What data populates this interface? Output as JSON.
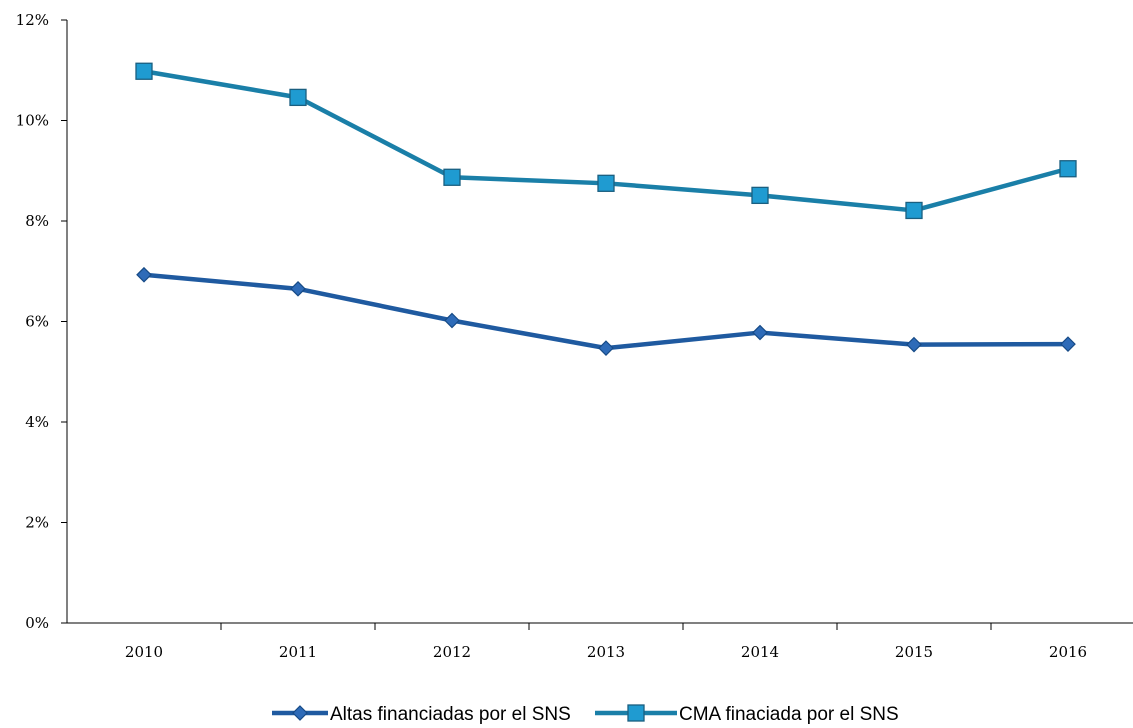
{
  "chart_data": {
    "type": "line",
    "categories": [
      "2010",
      "2011",
      "2012",
      "2013",
      "2014",
      "2015",
      "2016"
    ],
    "series": [
      {
        "name": "Altas financiadas por el SNS",
        "values": [
          6.93,
          6.65,
          6.02,
          5.47,
          5.78,
          5.54,
          5.55
        ],
        "color": "#1f5aa0",
        "marker": "diamond"
      },
      {
        "name": "CMA finaciada por el SNS",
        "values": [
          10.98,
          10.46,
          8.87,
          8.75,
          8.51,
          8.21,
          9.04
        ],
        "color": "#1a7fa8",
        "marker_fill": "#1f9bd1",
        "marker": "square"
      }
    ],
    "ylim": [
      0,
      12
    ],
    "yticks": [
      "0%",
      "2%",
      "4%",
      "6%",
      "8%",
      "10%",
      "12%"
    ],
    "ytick_values": [
      0,
      2,
      4,
      6,
      8,
      10,
      12
    ],
    "title": "",
    "xlabel": "",
    "ylabel": "",
    "grid": false,
    "legend_position": "bottom"
  }
}
